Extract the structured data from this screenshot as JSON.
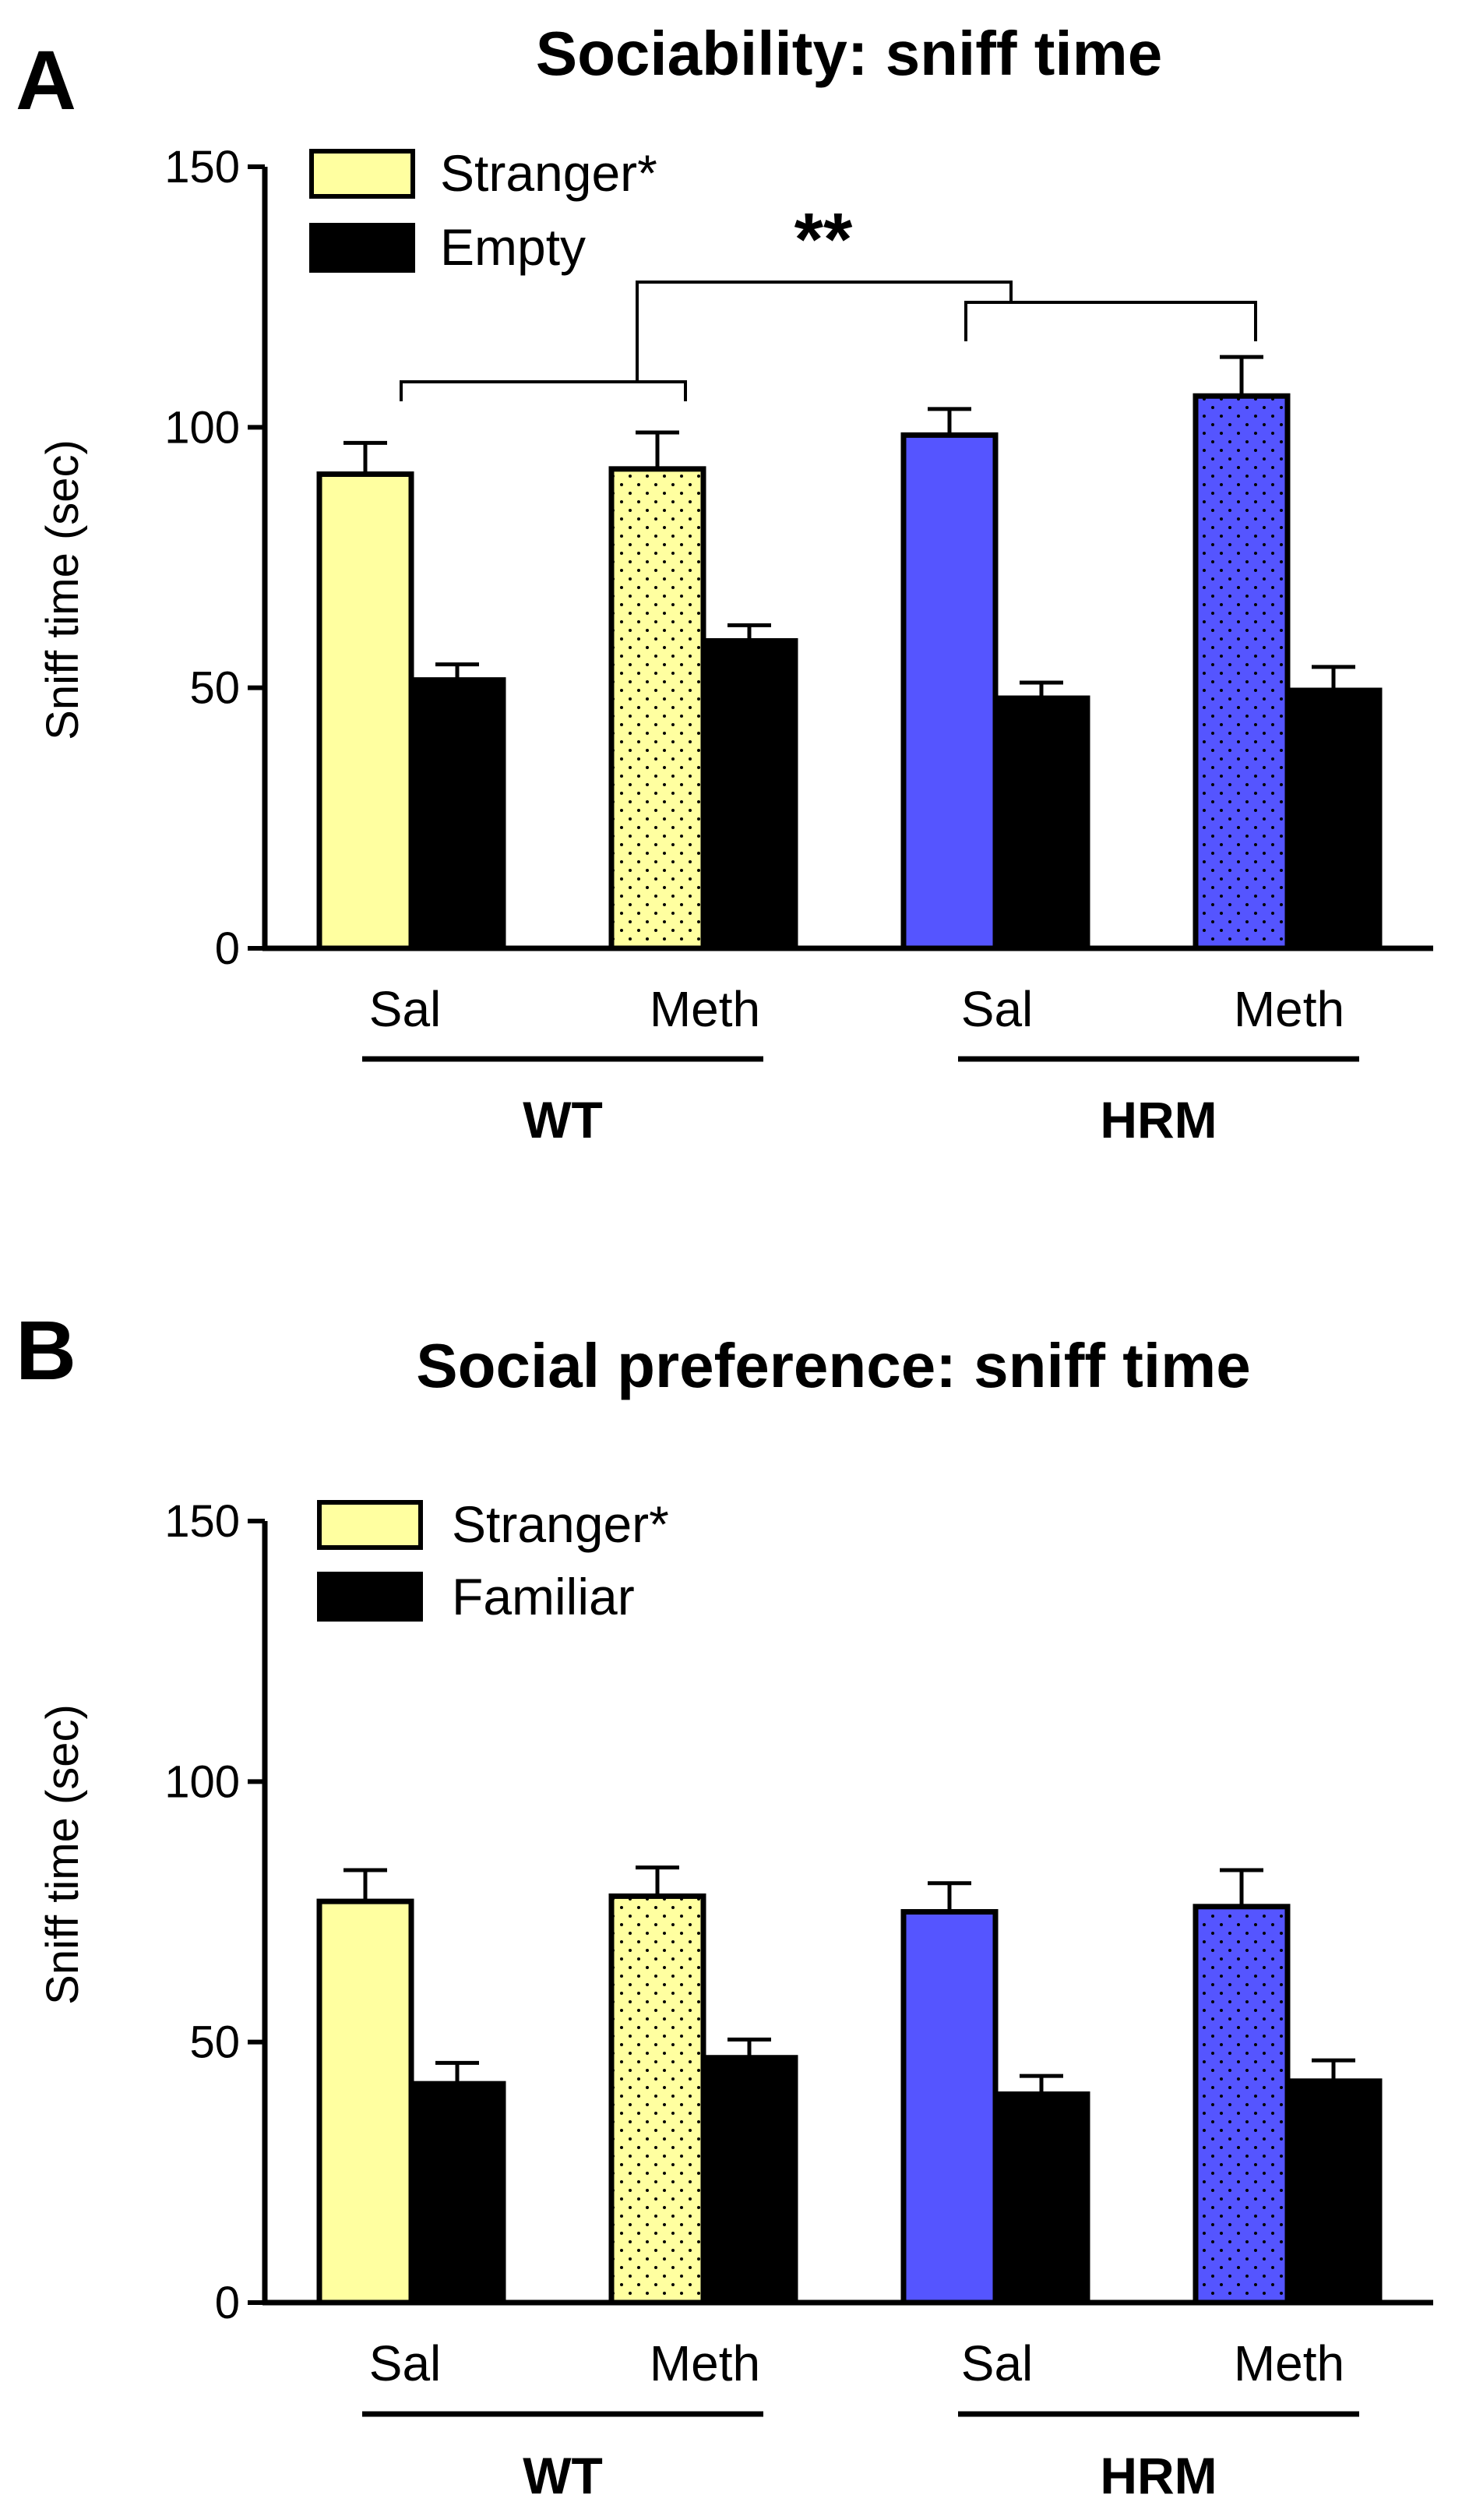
{
  "colors": {
    "stranger_wt": "#FFFFA0",
    "stranger_hrm": "#5555FF",
    "other": "#000000",
    "dot_pattern": "#000000"
  },
  "chart_data": [
    {
      "type": "bar",
      "panel_label": "A",
      "title": "Sociability: sniff time",
      "ylabel": "Sniff time (sec)",
      "xlabel": "",
      "ylim": [
        0,
        150
      ],
      "yticks": [
        0,
        50,
        100,
        150
      ],
      "grid": false,
      "legend_position": "top-left",
      "categories": [
        "Sal",
        "Meth",
        "Sal",
        "Meth"
      ],
      "groups": [
        {
          "label": "WT",
          "categories": [
            0,
            1
          ]
        },
        {
          "label": "HRM",
          "categories": [
            2,
            3
          ]
        }
      ],
      "series": [
        {
          "name": "Stranger",
          "legend_suffix": "*",
          "values": [
            91,
            92,
            98.5,
            106
          ],
          "errors": [
            6,
            7,
            5,
            7.5
          ]
        },
        {
          "name": "Empty",
          "legend_suffix": "",
          "values": [
            51.5,
            59,
            48,
            49.5
          ],
          "errors": [
            3,
            3,
            3,
            4.5
          ]
        }
      ],
      "annotations": [
        {
          "text": "**",
          "type": "significance bracket",
          "compares": [
            "WT",
            "HRM"
          ]
        }
      ]
    },
    {
      "type": "bar",
      "panel_label": "B",
      "title": "Social preference: sniff time",
      "ylabel": "Sniff time (sec)",
      "xlabel": "",
      "ylim": [
        0,
        150
      ],
      "yticks": [
        0,
        50,
        100,
        150
      ],
      "grid": false,
      "legend_position": "top-left",
      "categories": [
        "Sal",
        "Meth",
        "Sal",
        "Meth"
      ],
      "groups": [
        {
          "label": "WT",
          "categories": [
            0,
            1
          ]
        },
        {
          "label": "HRM",
          "categories": [
            2,
            3
          ]
        }
      ],
      "series": [
        {
          "name": "Stranger",
          "legend_suffix": "*",
          "values": [
            77,
            78,
            75,
            76
          ],
          "errors": [
            6,
            5.5,
            5.5,
            7
          ]
        },
        {
          "name": "Familiar",
          "legend_suffix": "",
          "values": [
            42,
            47,
            40,
            42.5
          ],
          "errors": [
            4,
            3.5,
            3.5,
            4
          ]
        }
      ],
      "annotations": []
    }
  ]
}
